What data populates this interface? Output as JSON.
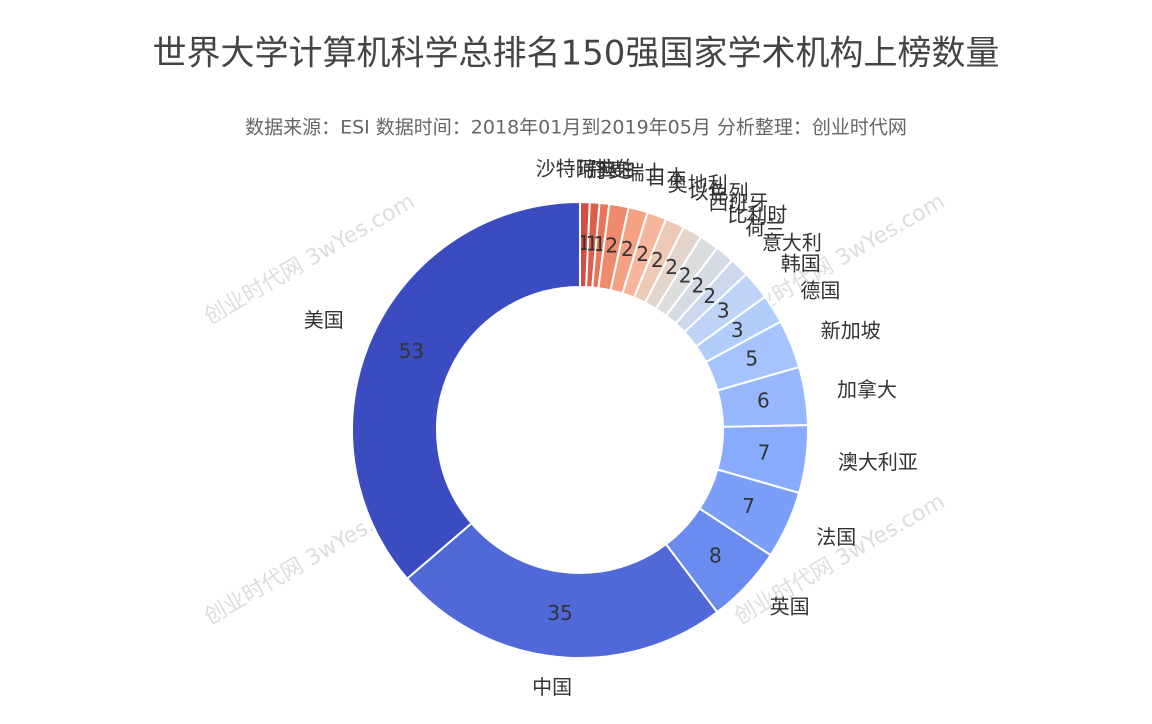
{
  "chart_data": {
    "type": "donut",
    "title": "世界大学计算机科学总排名150强国家学术机构上榜数量",
    "subtitle": "数据来源：ESI 数据时间：2018年01月到2019年05月 分析整理：创业时代网",
    "watermark": "创业时代网 3wYes.com",
    "categories": [
      "沙特阿拉伯",
      "瑞典",
      "丹麦",
      "瑞士",
      "日本",
      "奥地利",
      "以色列",
      "西班牙",
      "比利时",
      "荷兰",
      "意大利",
      "韩国",
      "德国",
      "新加坡",
      "加拿大",
      "澳大利亚",
      "法国",
      "英国",
      "中国",
      "美国"
    ],
    "values": [
      1,
      1,
      1,
      2,
      2,
      2,
      2,
      2,
      2,
      2,
      2,
      3,
      3,
      5,
      6,
      7,
      7,
      8,
      35,
      53
    ],
    "colors": [
      "#d44e41",
      "#dd5f4b",
      "#e7745b",
      "#f08a6c",
      "#f4a283",
      "#f5b69c",
      "#eec9b5",
      "#e3d4cc",
      "#dcdddd",
      "#d5dbe5",
      "#cbd8ee",
      "#bfd3f6",
      "#b3cdfb",
      "#a5c3fe",
      "#97b8ff",
      "#88abfd",
      "#7b9ff9",
      "#6a8bef",
      "#4f69d9",
      "#3b4cc0"
    ]
  }
}
